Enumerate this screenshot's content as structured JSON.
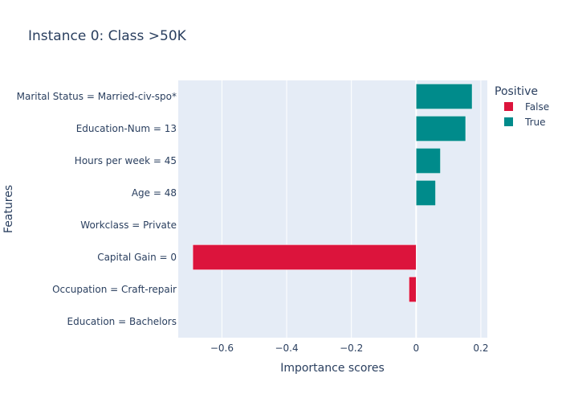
{
  "chart_data": {
    "type": "bar",
    "orientation": "horizontal",
    "title": "Instance 0: Class >50K",
    "xlabel": "Importance scores",
    "ylabel": "Features",
    "xlim": [
      -0.735,
      0.22
    ],
    "xticks": [
      -0.6,
      -0.4,
      -0.2,
      0,
      0.2
    ],
    "xtick_labels": [
      "−0.6",
      "−0.4",
      "−0.2",
      "0",
      "0.2"
    ],
    "grid": true,
    "legend_title": "Positive",
    "legend_position": "top-right",
    "categories": [
      "Marital Status = Married-civ-spo*",
      "Education-Num = 13",
      "Hours per week = 45",
      "Age = 48",
      "Workclass = Private",
      "Capital Gain = 0",
      "Occupation = Craft-repair",
      "Education = Bachelors"
    ],
    "values": [
      0.173,
      0.153,
      0.075,
      0.06,
      0.0,
      -0.69,
      -0.022,
      0.0
    ],
    "series": [
      {
        "name": "False",
        "color": "#dc143c"
      },
      {
        "name": "True",
        "color": "#008b8b"
      }
    ]
  }
}
